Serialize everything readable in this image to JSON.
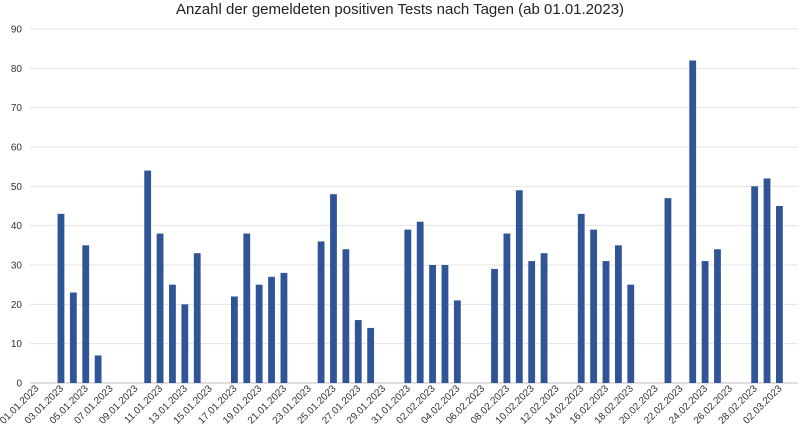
{
  "chart_data": {
    "type": "bar",
    "title": "Anzahl der gemeldeten positiven Tests nach Tagen (ab 01.01.2023)",
    "xlabel": "",
    "ylabel": "",
    "ylim": [
      0,
      90
    ],
    "yticks": [
      0,
      10,
      20,
      30,
      40,
      50,
      60,
      70,
      80,
      90
    ],
    "grid": true,
    "bar_color": "#2F5597",
    "categories": [
      "01.01.2023",
      "02.01.2023",
      "03.01.2023",
      "04.01.2023",
      "05.01.2023",
      "06.01.2023",
      "07.01.2023",
      "08.01.2023",
      "09.01.2023",
      "10.01.2023",
      "11.01.2023",
      "12.01.2023",
      "13.01.2023",
      "14.01.2023",
      "15.01.2023",
      "16.01.2023",
      "17.01.2023",
      "18.01.2023",
      "19.01.2023",
      "20.01.2023",
      "21.01.2023",
      "22.01.2023",
      "23.01.2023",
      "24.01.2023",
      "25.01.2023",
      "26.01.2023",
      "27.01.2023",
      "28.01.2023",
      "29.01.2023",
      "30.01.2023",
      "31.01.2023",
      "01.02.2023",
      "02.02.2023",
      "03.02.2023",
      "04.02.2023",
      "05.02.2023",
      "06.02.2023",
      "07.02.2023",
      "08.02.2023",
      "09.02.2023",
      "10.02.2023",
      "11.02.2023",
      "12.02.2023",
      "13.02.2023",
      "14.02.2023",
      "15.02.2023",
      "16.02.2023",
      "17.02.2023",
      "18.02.2023",
      "19.02.2023",
      "20.02.2023",
      "21.02.2023",
      "22.02.2023",
      "23.02.2023",
      "24.02.2023",
      "25.02.2023",
      "26.02.2023",
      "27.02.2023",
      "28.02.2023",
      "01.03.2023",
      "02.03.2023",
      "03.03.2023"
    ],
    "values": [
      0,
      0,
      43,
      23,
      35,
      7,
      0,
      0,
      0,
      54,
      38,
      25,
      20,
      33,
      0,
      0,
      22,
      38,
      25,
      27,
      28,
      0,
      0,
      36,
      48,
      34,
      16,
      14,
      0,
      0,
      39,
      41,
      30,
      30,
      21,
      0,
      0,
      29,
      38,
      49,
      31,
      33,
      0,
      0,
      43,
      39,
      31,
      35,
      25,
      0,
      0,
      47,
      0,
      82,
      31,
      34,
      0,
      0,
      50,
      52,
      45,
      0
    ],
    "label_every": 2
  }
}
